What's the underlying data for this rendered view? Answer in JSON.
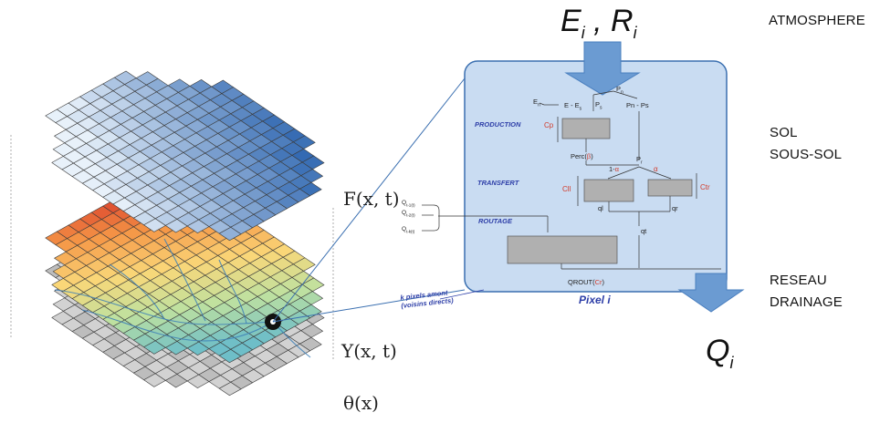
{
  "right_labels": {
    "atmosphere": "ATMOSPHERE",
    "sol": "SOL",
    "sous_sol": "SOUS-SOL",
    "reseau": "RESEAU",
    "drainage": "DRAINAGE"
  },
  "inputs": {
    "e": "E",
    "i1": "i",
    "comma": ",",
    "r": "R",
    "i2": "i"
  },
  "output": {
    "q": "Q",
    "i": "i"
  },
  "layers": {
    "forcing": "F(x, t)",
    "state": "Y(x, t)",
    "params": "θ(x)"
  },
  "pixel_box": {
    "title": "Pixel i",
    "production": "PRODUCTION",
    "transfert": "TRANSFERT",
    "routage": "ROUTAGE",
    "en": "E",
    "en_sub": "n",
    "e_minus": "E - E",
    "e_minus_sub": "s",
    "pn": "P",
    "pn_sub": "n",
    "ps_top": "P",
    "ps_sub": "s",
    "pn_ps": "Pn - Ps",
    "cp": "Cp",
    "perc": "Perc(",
    "beta": "β",
    "perc_close": ")",
    "p_r": "P",
    "p_r_sub": "r",
    "one_minus": "1-",
    "alpha1": "α",
    "alpha2": "α",
    "cll": "Cll",
    "ctr": "Ctr",
    "ql": "ql",
    "qr": "qr",
    "qt": "qt",
    "qrout": "QROUT(",
    "cr": "Cr",
    "qrout_close": ")"
  },
  "upstream": {
    "q1": "Q",
    "q1_sub": "t-1(t)",
    "q2": "Q",
    "q2_sub": "t-2(t)",
    "qk": "Q",
    "qk_sub": "t-k(t)",
    "note_line1": "k pixels amont",
    "note_line2": "(voisins directs)"
  },
  "colors": {
    "box_fill": "#c9dcf2",
    "box_stroke": "#3a6fb0",
    "arrow_fill": "#6b9bd2",
    "reservoir_fill": "#b0b0b0",
    "blue_text": "#2e3fa8",
    "red_text": "#d23b2a"
  }
}
